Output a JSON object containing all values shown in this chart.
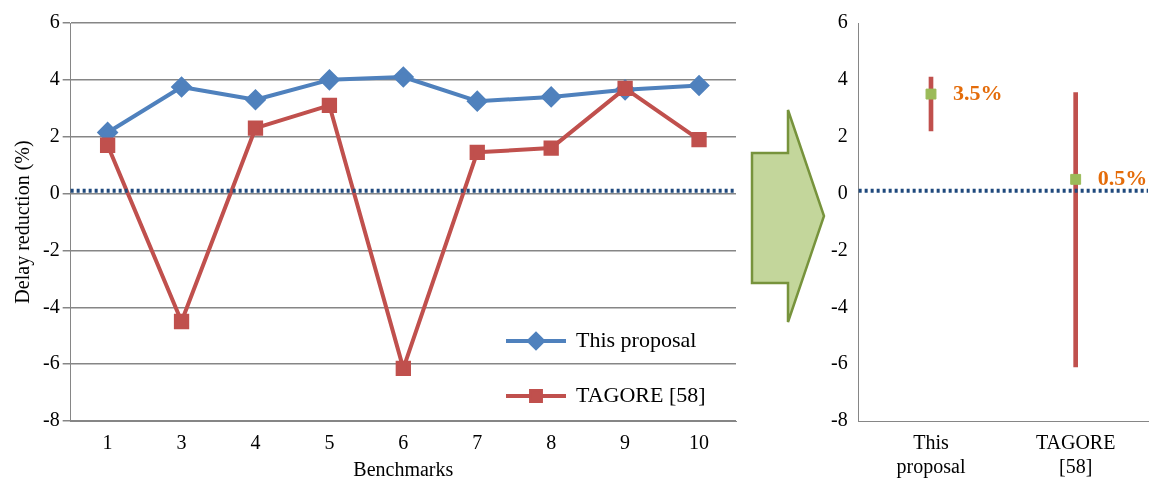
{
  "chart_data": [
    {
      "type": "line",
      "xlabel": "Benchmarks",
      "ylabel": "Delay reduction (%)",
      "categories": [
        "1",
        "3",
        "4",
        "5",
        "6",
        "7",
        "8",
        "9",
        "10"
      ],
      "series": [
        {
          "name": "This proposal",
          "color": "#4f81bd",
          "marker": "diamond",
          "values": [
            2.15,
            3.75,
            3.3,
            4.0,
            4.1,
            3.25,
            3.4,
            3.65,
            3.8
          ]
        },
        {
          "name": "TAGORE [58]",
          "color": "#c0504d",
          "marker": "square",
          "values": [
            1.7,
            -4.5,
            2.3,
            3.1,
            -6.15,
            1.45,
            1.6,
            3.7,
            1.9
          ]
        }
      ],
      "ylim": [
        -8,
        6
      ],
      "yticks": [
        -8,
        -6,
        -4,
        -2,
        0,
        2,
        4,
        6
      ],
      "grid": "y",
      "legend": "bottom right",
      "ref_lines": [
        {
          "axis": "y",
          "value": 0.1,
          "color": "#1f497d",
          "line_style": "dotted"
        }
      ]
    },
    {
      "type": "bar",
      "categories": [
        "This proposal",
        "TAGORE [58]"
      ],
      "series": [
        {
          "color": "#c0504d",
          "base": [
            2.2,
            -6.1
          ],
          "values": [
            1.9,
            9.65
          ]
        },
        {
          "type": "scatter",
          "color": "#9bbb59",
          "marker": "square",
          "values": [
            3.5,
            0.5
          ],
          "value_labels": [
            "3.5%",
            "0.5%"
          ]
        }
      ],
      "ylim": [
        -8,
        6
      ],
      "yticks": [
        -8,
        -6,
        -4,
        -2,
        0,
        2,
        4,
        6
      ],
      "grid": false,
      "ref_lines": [
        {
          "axis": "y",
          "value": 0.1,
          "color": "#1f497d",
          "line_style": "dotted"
        }
      ]
    }
  ]
}
